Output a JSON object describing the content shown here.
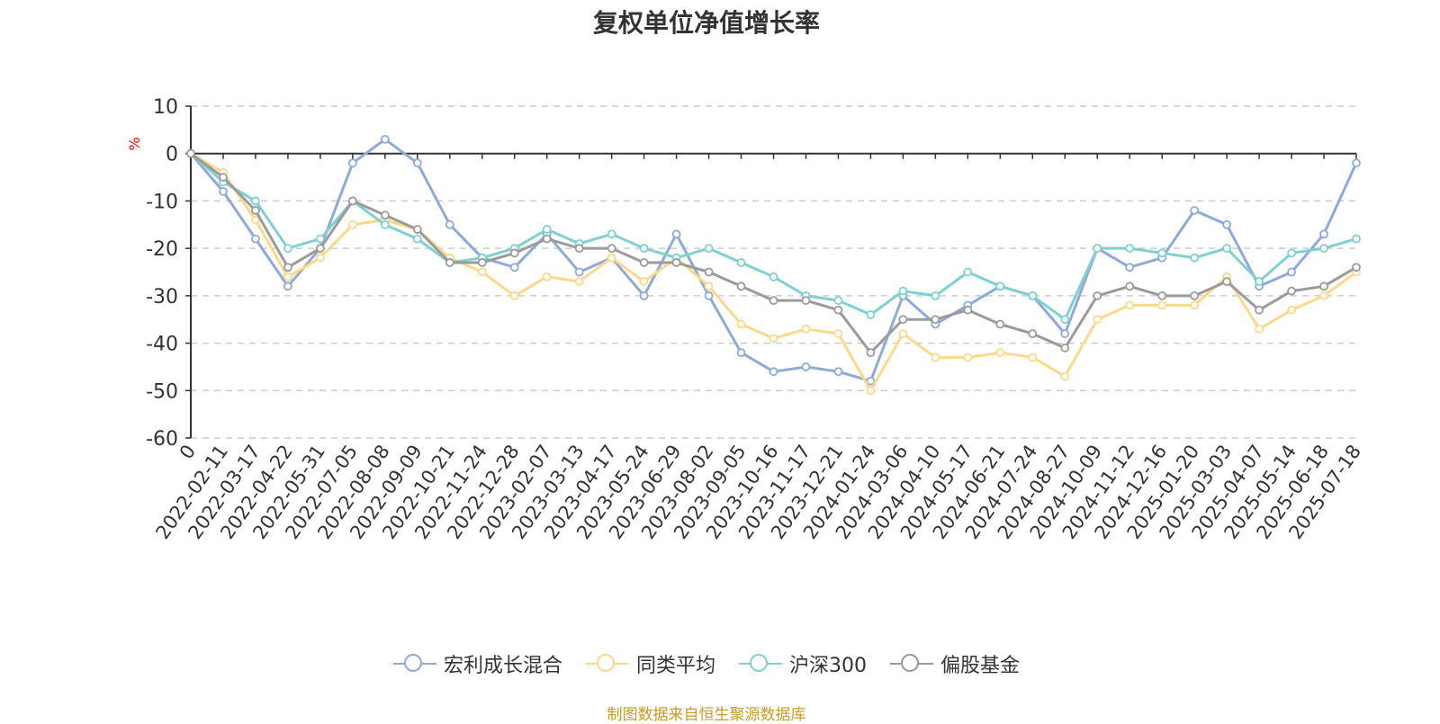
{
  "chart_data": {
    "type": "line",
    "title": "复权单位净值增长率",
    "ylabel": "%",
    "ylim": [
      -60,
      10
    ],
    "yticks": [
      10,
      0,
      -10,
      -20,
      -30,
      -40,
      -50,
      -60
    ],
    "grid": true,
    "legend_position": "bottom",
    "x_tick_labels": [
      "0",
      "2022-02-11",
      "2022-03-17",
      "2022-04-22",
      "2022-05-31",
      "2022-07-05",
      "2022-08-08",
      "2022-09-09",
      "2022-10-21",
      "2022-11-24",
      "2022-12-28",
      "2023-02-07",
      "2023-03-13",
      "2023-04-17",
      "2023-05-24",
      "2023-06-29",
      "2023-08-02",
      "2023-09-05",
      "2023-10-16",
      "2023-11-17",
      "2023-12-21",
      "2024-01-24",
      "2024-03-06",
      "2024-04-10",
      "2024-05-17",
      "2024-06-21",
      "2024-07-24",
      "2024-08-27",
      "2024-10-09",
      "2024-11-12",
      "2024-12-16",
      "2025-01-20",
      "2025-03-03",
      "2025-04-07",
      "2025-05-14",
      "2025-06-18",
      "2025-07-18"
    ],
    "series": [
      {
        "name": "宏利成长混合",
        "color": "#8eaadb",
        "values": [
          0,
          -8,
          -18,
          -28,
          -20,
          -2,
          3,
          -2,
          -15,
          -22,
          -24,
          -17,
          -25,
          -22,
          -30,
          -17,
          -30,
          -42,
          -46,
          -45,
          -46,
          -48,
          -30,
          -36,
          -32,
          -28,
          -30,
          -38,
          -20,
          -24,
          -22,
          -12,
          -15,
          -28,
          -25,
          -17,
          -2
        ]
      },
      {
        "name": "同类平均",
        "color": "#fad98a",
        "values": [
          0,
          -4,
          -14,
          -26,
          -22,
          -15,
          -14,
          -16,
          -22,
          -25,
          -30,
          -26,
          -27,
          -22,
          -27,
          -22,
          -28,
          -36,
          -39,
          -37,
          -38,
          -50,
          -38,
          -43,
          -43,
          -42,
          -43,
          -47,
          -35,
          -32,
          -32,
          -32,
          -26,
          -37,
          -33,
          -30,
          -25
        ]
      },
      {
        "name": "沪深300",
        "color": "#7fd1d1",
        "values": [
          0,
          -6,
          -10,
          -20,
          -18,
          -10,
          -15,
          -18,
          -23,
          -22,
          -20,
          -16,
          -19,
          -17,
          -20,
          -22,
          -20,
          -23,
          -26,
          -30,
          -31,
          -34,
          -29,
          -30,
          -25,
          -28,
          -30,
          -35,
          -20,
          -20,
          -21,
          -22,
          -20,
          -27,
          -21,
          -20,
          -18
        ]
      },
      {
        "name": "偏股基金",
        "color": "#9b9b9b",
        "values": [
          0,
          -5,
          -12,
          -24,
          -20,
          -10,
          -13,
          -16,
          -23,
          -23,
          -21,
          -18,
          -20,
          -20,
          -23,
          -23,
          -25,
          -28,
          -31,
          -31,
          -33,
          -42,
          -35,
          -35,
          -33,
          -36,
          -38,
          -41,
          -30,
          -28,
          -30,
          -30,
          -27,
          -33,
          -29,
          -28,
          -24
        ]
      }
    ]
  },
  "legend": {
    "items": [
      "宏利成长混合",
      "同类平均",
      "沪深300",
      "偏股基金"
    ]
  },
  "footer": {
    "source": "制图数据来自恒生聚源数据库"
  }
}
